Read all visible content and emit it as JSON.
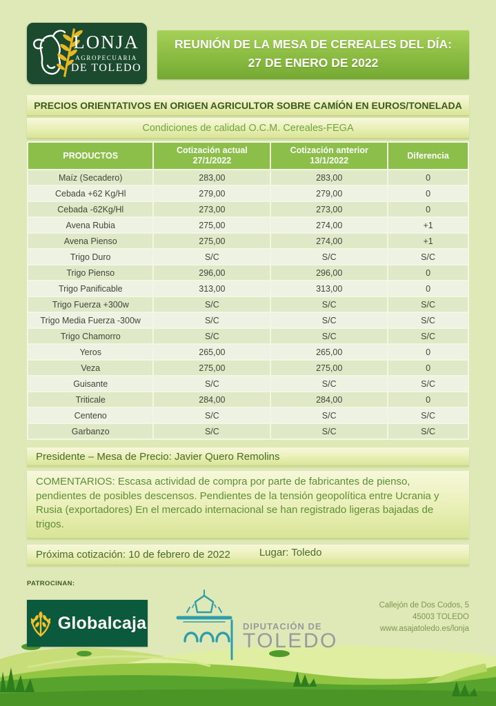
{
  "header": {
    "logo": {
      "title": "LONJA",
      "subtitle1": "AGROPECUARIA",
      "subtitle2": "DE TOLEDO"
    },
    "banner_line1": "REUNIÓN DE LA MESA DE CEREALES DEL DÍA:",
    "banner_line2": "27 DE ENERO DE 2022"
  },
  "titles": {
    "main": "PRECIOS ORIENTATIVOS EN ORIGEN AGRICULTOR SOBRE CAMÍÓN EN EUROS/TONELADA",
    "conditions": "Condiciones de calidad O.C.M. Cereales-FEGA"
  },
  "table": {
    "headers": [
      {
        "line1": "PRODUCTOS",
        "line2": ""
      },
      {
        "line1": "Cotización actual",
        "line2": "27/1/2022"
      },
      {
        "line1": "Cotización anterior",
        "line2": "13/1/2022"
      },
      {
        "line1": "Diferencia",
        "line2": ""
      }
    ],
    "rows": [
      {
        "product": "Maíz (Secadero)",
        "current": "283,00",
        "previous": "283,00",
        "diff": "0"
      },
      {
        "product": "Cebada +62 Kg/Hl",
        "current": "279,00",
        "previous": "279,00",
        "diff": "0"
      },
      {
        "product": "Cebada -62Kg/Hl",
        "current": "273,00",
        "previous": "273,00",
        "diff": "0"
      },
      {
        "product": "Avena Rubia",
        "current": "275,00",
        "previous": "274,00",
        "diff": "+1"
      },
      {
        "product": "Avena Pienso",
        "current": "275,00",
        "previous": "274,00",
        "diff": "+1"
      },
      {
        "product": "Trigo Duro",
        "current": "S/C",
        "previous": "S/C",
        "diff": "S/C"
      },
      {
        "product": "Trigo Pienso",
        "current": "296,00",
        "previous": "296,00",
        "diff": "0"
      },
      {
        "product": "Trigo Panificable",
        "current": "313,00",
        "previous": "313,00",
        "diff": "0"
      },
      {
        "product": "Trigo Fuerza +300w",
        "current": "S/C",
        "previous": "S/C",
        "diff": "S/C"
      },
      {
        "product": "Trigo Media Fuerza -300w",
        "current": "S/C",
        "previous": "S/C",
        "diff": "S/C"
      },
      {
        "product": "Trigo Chamorro",
        "current": "S/C",
        "previous": "S/C",
        "diff": "S/C"
      },
      {
        "product": "Yeros",
        "current": "265,00",
        "previous": "265,00",
        "diff": "0"
      },
      {
        "product": "Veza",
        "current": "275,00",
        "previous": "275,00",
        "diff": "0"
      },
      {
        "product": "Guisante",
        "current": "S/C",
        "previous": "S/C",
        "diff": "S/C"
      },
      {
        "product": "Triticale",
        "current": "284,00",
        "previous": "284,00",
        "diff": "0"
      },
      {
        "product": "Centeno",
        "current": "S/C",
        "previous": "S/C",
        "diff": "S/C"
      },
      {
        "product": "Garbanzo",
        "current": "S/C",
        "previous": "S/C",
        "diff": "S/C"
      }
    ]
  },
  "info": {
    "president": "Presidente – Mesa de Precio: Javier Quero Remolins",
    "comments": "COMENTARIOS: Escasa actividad de compra por parte de fabricantes de pienso, pendientes de posibles descensos. Pendientes de la tensión geopolítica entre Ucrania y Rusia (exportadores) En el mercado internacional se han registrado ligeras bajadas de trigos.",
    "next_session": "Próxima cotización: 10 de febrero de 2022",
    "location": "Lugar: Toledo"
  },
  "footer": {
    "sponsors_label": "PATROCINAN:",
    "globalcaja": "Globalcaja",
    "diputacion_line1": "DIPUTACIÓN DE",
    "diputacion_line2": "TOLEDO",
    "address_line1": "Callejón de Dos Codos, 5",
    "address_line2": "45003 TOLEDO",
    "address_line3": "www.asajatoledo.es/lonja"
  },
  "colors": {
    "page_background": "#dfe9b8",
    "table_header_green": "#8cbf4a",
    "logo_dark_green": "#1b4a2e",
    "banner_green": "#84b33c",
    "globalcaja_green": "#0c5a3e",
    "diputacion_teal": "#2d9daa",
    "wheat_yellow": "#e8b823"
  }
}
